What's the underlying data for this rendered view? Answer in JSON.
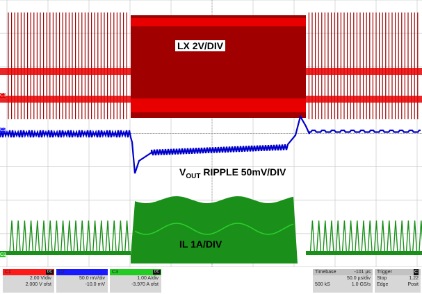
{
  "labels": {
    "lx": "LX 2V/DIV",
    "vout_main": "V",
    "vout_sub": "OUT",
    "vout_rest": " RIPPLE 50mV/DIV",
    "il": "IL 1A/DIV"
  },
  "markers": {
    "c1": "C1",
    "c2": "C2",
    "c3": "C3"
  },
  "channels": [
    {
      "name": "C1",
      "tag": "DC",
      "scale": "2.00 V/div",
      "offset": "2.000 V ofst",
      "color": "#ff1a1a"
    },
    {
      "name": "C2",
      "tag": "",
      "scale": "50.0 mV/div",
      "offset": "-10.0 mV",
      "color": "#1a1aff"
    },
    {
      "name": "C3",
      "tag": "DC",
      "scale": "1.00 A/div",
      "offset": "-3.970 A ofst",
      "color": "#22cc22"
    }
  ],
  "timebase": {
    "label": "Timebase",
    "delay": "-101 µs",
    "per_div": "50.0 µs/div",
    "samples": "500 kS",
    "rate": "1.0 GS/s"
  },
  "trigger": {
    "label": "Trigger",
    "tag": "C",
    "mode": "Stop",
    "level": "1.22",
    "type": "Edge",
    "slope": "Posit"
  },
  "colors": {
    "lx_wave": "#a00000",
    "lx_edge": "#e80000",
    "vout_wave": "#0000cc",
    "il_wave": "#1a8f1a",
    "grid": "#c8c8c8"
  }
}
